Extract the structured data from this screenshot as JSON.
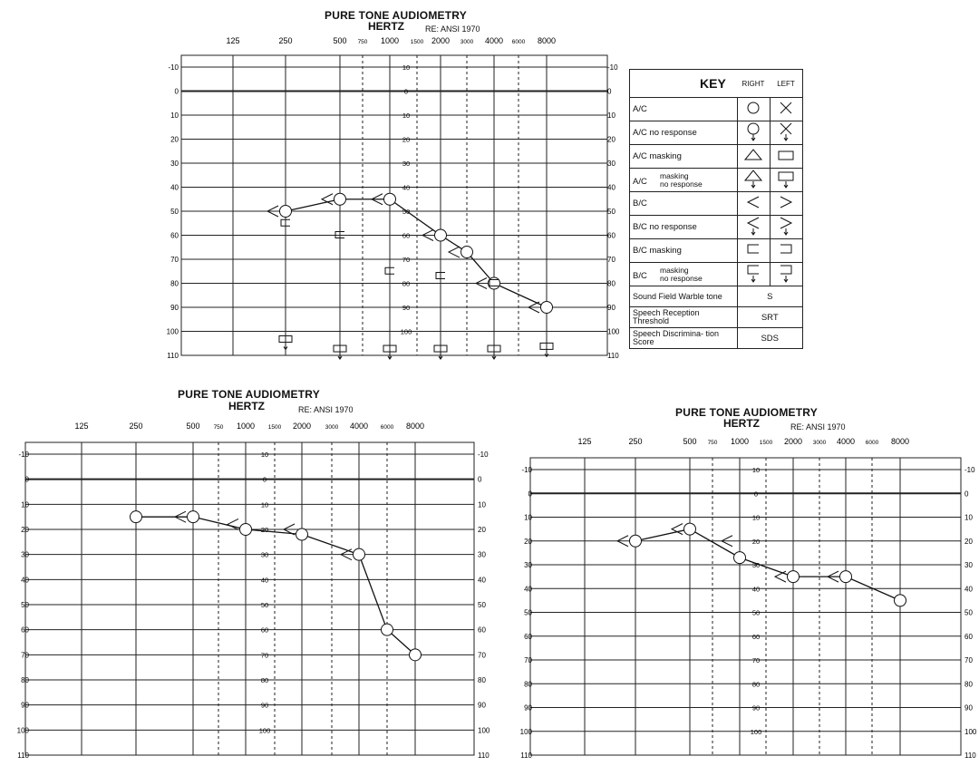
{
  "charts": [
    {
      "title": "PURE TONE AUDIOMETRY",
      "subtitle": "HERTZ",
      "reference": "RE: ANSI 1970",
      "freq_labels": [
        "125",
        "250",
        "500",
        "750",
        "1000",
        "1500",
        "2000",
        "3000",
        "4000",
        "6000",
        "8000"
      ],
      "left_scale": [
        "-10",
        "0",
        "10",
        "20",
        "30",
        "40",
        "50",
        "60",
        "70",
        "80",
        "90",
        "100",
        "110"
      ],
      "right_scale": [
        "-10",
        "0",
        "10",
        "20",
        "30",
        "40",
        "50",
        "60",
        "70",
        "80",
        "90",
        "100",
        "110"
      ],
      "center_scale": [
        "10",
        "0",
        "10",
        "20",
        "30",
        "40",
        "50",
        "60",
        "70",
        "80",
        "90",
        "100"
      ]
    },
    {
      "title": "PURE TONE AUDIOMETRY",
      "subtitle": "HERTZ",
      "reference": "RE: ANSI 1970",
      "freq_labels": [
        "125",
        "250",
        "500",
        "750",
        "1000",
        "1500",
        "2000",
        "3000",
        "4000",
        "6000",
        "8000"
      ],
      "left_scale": [
        "-10",
        "0",
        "10",
        "20",
        "30",
        "40",
        "50",
        "60",
        "70",
        "80",
        "90",
        "100",
        "110"
      ],
      "right_scale": [
        "-10",
        "0",
        "10",
        "20",
        "30",
        "40",
        "50",
        "60",
        "70",
        "80",
        "90",
        "100",
        "110"
      ],
      "center_scale": [
        "10",
        "0",
        "10",
        "20",
        "30",
        "40",
        "50",
        "60",
        "70",
        "80",
        "90",
        "100"
      ]
    },
    {
      "title": "PURE TONE AUDIOMETRY",
      "subtitle": "HERTZ",
      "reference": "RE: ANSI 1970",
      "freq_labels": [
        "125",
        "250",
        "500",
        "750",
        "1000",
        "1500",
        "2000",
        "3000",
        "4000",
        "6000",
        "8000"
      ],
      "left_scale": [
        "-10",
        "0",
        "10",
        "20",
        "30",
        "40",
        "50",
        "60",
        "70",
        "80",
        "90",
        "100",
        "110"
      ],
      "right_scale": [
        "-10",
        "0",
        "10",
        "20",
        "30",
        "40",
        "50",
        "60",
        "70",
        "80",
        "90",
        "100",
        "110"
      ],
      "center_scale": [
        "10",
        "0",
        "10",
        "20",
        "30",
        "40",
        "50",
        "60",
        "70",
        "80",
        "90",
        "100"
      ]
    }
  ],
  "key": {
    "title": "KEY",
    "right_header": "RIGHT",
    "left_header": "LEFT",
    "rows": [
      {
        "label": "A/C",
        "right_symbol": "circle-icon",
        "left_symbol": "x-icon"
      },
      {
        "label": "A/C no response",
        "right_symbol": "circle-arrow-icon",
        "left_symbol": "x-arrow-icon"
      },
      {
        "label": "A/C masking",
        "right_symbol": "triangle-icon",
        "left_symbol": "square-icon"
      },
      {
        "label": "A/C",
        "label2": "masking",
        "label3": "no response",
        "right_symbol": "triangle-arrow-icon",
        "left_symbol": "square-arrow-icon"
      },
      {
        "label": "B/C",
        "right_symbol": "less-than-icon",
        "left_symbol": "greater-than-icon"
      },
      {
        "label": "B/C no response",
        "right_symbol": "less-than-arrow-icon",
        "left_symbol": "greater-than-arrow-icon"
      },
      {
        "label": "B/C masking",
        "right_symbol": "left-bracket-icon",
        "left_symbol": "right-bracket-icon"
      },
      {
        "label": "B/C",
        "label2": "masking",
        "label3": "no response",
        "right_symbol": "left-bracket-arrow-icon",
        "left_symbol": "right-bracket-arrow-icon"
      }
    ],
    "code_rows": [
      {
        "label": "Sound Field Warble tone",
        "code": "S"
      },
      {
        "label": "Speech Reception Threshold",
        "code": "SRT"
      },
      {
        "label": "Speech Discrimina- tion Score",
        "code": "SDS"
      }
    ]
  },
  "chart_data": [
    {
      "type": "line",
      "title": "PURE TONE AUDIOMETRY",
      "xlabel": "HERTZ",
      "x_scale": "log",
      "y_inverted": true,
      "ylim": [
        -10,
        110
      ],
      "series": [
        {
          "name": "A/C",
          "x": [
            250,
            500,
            1000,
            2000,
            3000,
            4000,
            8000
          ],
          "y": [
            50,
            45,
            45,
            60,
            67,
            80,
            90
          ],
          "marker": "circle"
        },
        {
          "name": "B/C",
          "x": [
            250,
            500,
            1000,
            2000,
            3000,
            4000,
            8000
          ],
          "y": [
            50,
            45,
            45,
            60,
            67,
            80,
            90
          ],
          "marker": "less-than"
        },
        {
          "name": "B/C masking",
          "x": [
            250,
            500,
            1000,
            2000,
            4000
          ],
          "y": [
            55,
            60,
            75,
            77,
            80
          ],
          "marker": "left-bracket"
        },
        {
          "name": "A/C masking no response",
          "x": [
            250,
            500,
            1000,
            2000,
            4000,
            8000
          ],
          "y": [
            103,
            107,
            107,
            107,
            107,
            106
          ],
          "marker": "square-arrow"
        }
      ]
    },
    {
      "type": "line",
      "title": "PURE TONE AUDIOMETRY",
      "xlabel": "HERTZ",
      "x_scale": "log",
      "y_inverted": true,
      "ylim": [
        -10,
        110
      ],
      "series": [
        {
          "name": "A/C",
          "x": [
            250,
            500,
            1000,
            2000,
            4000,
            6000,
            8000
          ],
          "y": [
            15,
            15,
            20,
            22,
            30,
            60,
            70
          ],
          "marker": "circle"
        },
        {
          "name": "B/C",
          "x": [
            500,
            1000,
            2000,
            4000
          ],
          "y": [
            15,
            18,
            20,
            30
          ],
          "marker": "less-than"
        }
      ]
    },
    {
      "type": "line",
      "title": "PURE TONE AUDIOMETRY",
      "xlabel": "HERTZ",
      "x_scale": "log",
      "y_inverted": true,
      "ylim": [
        -10,
        110
      ],
      "series": [
        {
          "name": "A/C",
          "x": [
            250,
            500,
            1000,
            2000,
            4000,
            8000
          ],
          "y": [
            20,
            15,
            27,
            35,
            35,
            45
          ],
          "marker": "circle"
        },
        {
          "name": "B/C",
          "x": [
            250,
            500,
            1000,
            2000,
            4000
          ],
          "y": [
            20,
            15,
            20,
            35,
            35
          ],
          "marker": "less-than"
        }
      ]
    }
  ]
}
